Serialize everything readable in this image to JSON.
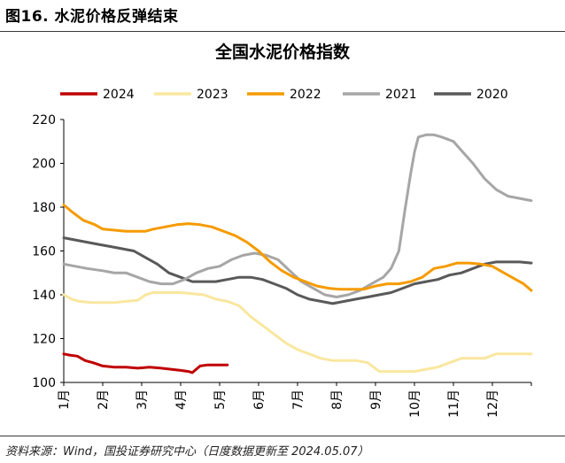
{
  "figure": {
    "heading": "图16. 水泥价格反弹结束",
    "source": "资料来源：Wind，国投证券研究中心（日度数据更新至 2024.05.07）"
  },
  "chart_data": {
    "type": "line",
    "title": "全国水泥价格指数",
    "xlabel": "",
    "ylabel": "",
    "ylim": [
      100,
      220
    ],
    "yticks": [
      100,
      120,
      140,
      160,
      180,
      200,
      220
    ],
    "xlim": [
      1,
      13
    ],
    "month_labels": [
      "1月",
      "2月",
      "3月",
      "4月",
      "5月",
      "6月",
      "7月",
      "8月",
      "9月",
      "10月",
      "11月",
      "12月"
    ],
    "grid": false,
    "legend_position": "top",
    "series": [
      {
        "name": "2024",
        "color": "#c00000",
        "x": [
          1,
          1.15,
          1.35,
          1.55,
          1.75,
          2,
          2.3,
          2.6,
          2.9,
          3.2,
          3.5,
          3.75,
          4,
          4.2,
          4.3,
          4.5,
          4.7,
          4.9,
          5.1,
          5.2
        ],
        "y": [
          113,
          112.5,
          112,
          110,
          109,
          107.5,
          107,
          107,
          106.5,
          107,
          106.5,
          106,
          105.5,
          105,
          104.5,
          107.5,
          108,
          108,
          108,
          108
        ]
      },
      {
        "name": "2023",
        "color": "#f9e79f",
        "x": [
          1,
          1.2,
          1.4,
          1.7,
          2,
          2.3,
          2.6,
          2.9,
          3.1,
          3.3,
          3.6,
          4,
          4.3,
          4.6,
          4.9,
          5.2,
          5.5,
          5.8,
          6.1,
          6.4,
          6.7,
          7,
          7.3,
          7.6,
          7.9,
          8.2,
          8.5,
          8.8,
          9.1,
          9.4,
          9.7,
          10,
          10.3,
          10.6,
          10.9,
          11.2,
          11.5,
          11.8,
          12.1,
          12.4,
          12.7,
          13
        ],
        "y": [
          140,
          138,
          137,
          136.5,
          136.5,
          136.5,
          137,
          137.5,
          140,
          141,
          141,
          141,
          140.5,
          140,
          138,
          137,
          135,
          130,
          126,
          122,
          118,
          115,
          113,
          111,
          110,
          110,
          110,
          109,
          105,
          105,
          105,
          105,
          106,
          107,
          109,
          111,
          111,
          111,
          113,
          113,
          113,
          113
        ]
      },
      {
        "name": "2022",
        "color": "#f59b00",
        "x": [
          1,
          1.2,
          1.5,
          1.8,
          2,
          2.3,
          2.6,
          2.9,
          3.1,
          3.3,
          3.6,
          3.9,
          4.2,
          4.5,
          4.8,
          5.1,
          5.4,
          5.7,
          6,
          6.3,
          6.6,
          6.9,
          7.2,
          7.5,
          7.8,
          8.1,
          8.4,
          8.7,
          9,
          9.3,
          9.6,
          9.9,
          10.2,
          10.5,
          10.8,
          11.1,
          11.4,
          11.7,
          12,
          12.3,
          12.6,
          12.8,
          13
        ],
        "y": [
          181,
          178,
          174,
          172,
          170,
          169.5,
          169,
          169,
          169,
          170,
          171,
          172,
          172.5,
          172,
          171,
          169,
          167,
          164,
          160,
          155,
          151,
          148,
          146,
          144,
          143,
          142.5,
          142.5,
          142.5,
          144,
          145,
          145,
          146,
          148,
          152,
          153,
          154.5,
          154.5,
          154,
          153,
          150,
          147,
          145,
          142
        ]
      },
      {
        "name": "2021",
        "color": "#a6a6a6",
        "x": [
          1,
          1.3,
          1.6,
          2,
          2.3,
          2.6,
          2.9,
          3.2,
          3.5,
          3.8,
          4.1,
          4.4,
          4.7,
          5,
          5.3,
          5.6,
          5.9,
          6.2,
          6.5,
          6.8,
          7.1,
          7.4,
          7.7,
          8,
          8.3,
          8.6,
          8.9,
          9.2,
          9.4,
          9.6,
          9.75,
          9.9,
          10,
          10.1,
          10.3,
          10.5,
          10.7,
          11,
          11.2,
          11.5,
          11.8,
          12.1,
          12.4,
          12.7,
          13
        ],
        "y": [
          154,
          153,
          152,
          151,
          150,
          150,
          148,
          146,
          145,
          145,
          147,
          150,
          152,
          153,
          156,
          158,
          159,
          158,
          156,
          151,
          146,
          143,
          140,
          139,
          140,
          142,
          145,
          148,
          152,
          160,
          178,
          195,
          205,
          212,
          213,
          213,
          212,
          210,
          206,
          200,
          193,
          188,
          185,
          184,
          183
        ]
      },
      {
        "name": "2020",
        "color": "#595959",
        "x": [
          1,
          1.3,
          1.6,
          1.9,
          2.2,
          2.5,
          2.8,
          3.1,
          3.4,
          3.7,
          4,
          4.3,
          4.6,
          4.9,
          5.2,
          5.5,
          5.8,
          6.1,
          6.4,
          6.7,
          7,
          7.3,
          7.6,
          7.9,
          8.2,
          8.5,
          8.8,
          9.1,
          9.4,
          9.7,
          10,
          10.3,
          10.6,
          10.9,
          11.2,
          11.5,
          11.8,
          12.1,
          12.4,
          12.7,
          13
        ],
        "y": [
          166,
          165,
          164,
          163,
          162,
          161,
          160,
          157,
          154,
          150,
          148,
          146,
          146,
          146,
          147,
          148,
          148,
          147,
          145,
          143,
          140,
          138,
          137,
          136,
          137,
          138,
          139,
          140,
          141,
          143,
          145,
          146,
          147,
          149,
          150,
          152,
          154,
          155,
          155,
          155,
          154.5
        ]
      }
    ]
  }
}
